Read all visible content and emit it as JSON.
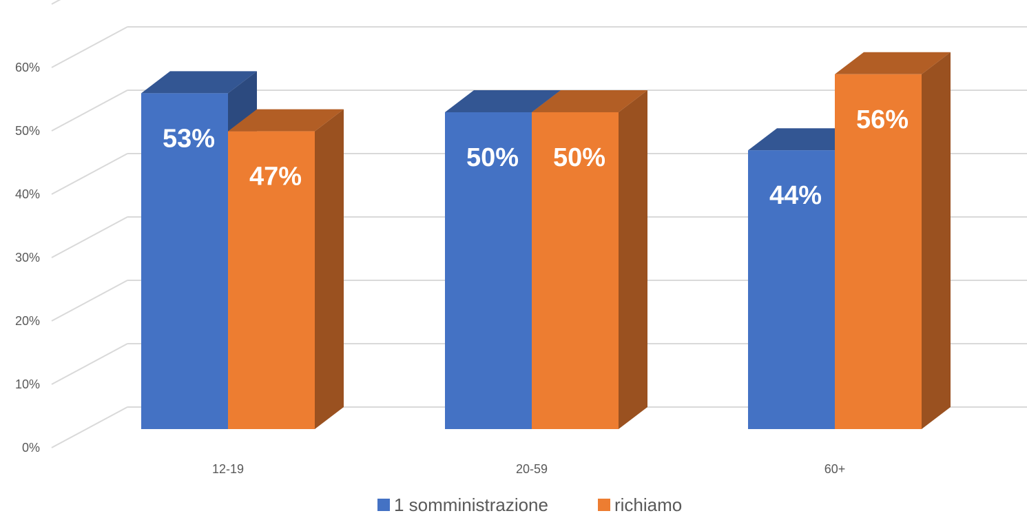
{
  "chart_data": {
    "type": "bar",
    "categories": [
      "12-19",
      "20-59",
      "60+"
    ],
    "series": [
      {
        "name": "1 somministrazione",
        "values": [
          53,
          50,
          44
        ],
        "labels": [
          "53%",
          "50%",
          "44%"
        ],
        "color": "#4472C4"
      },
      {
        "name": "richiamo",
        "values": [
          47,
          50,
          56
        ],
        "labels": [
          "47%",
          "50%",
          "56%"
        ],
        "color": "#ED7D31"
      }
    ],
    "ylim": [
      0,
      70
    ],
    "yticks": [
      0,
      10,
      20,
      30,
      40,
      50,
      60
    ],
    "ytick_labels": [
      "0%",
      "10%",
      "20%",
      "30%",
      "40%",
      "50%",
      "60%"
    ],
    "grid": true,
    "legend": {
      "placement": "bottom"
    },
    "three_d": true
  }
}
